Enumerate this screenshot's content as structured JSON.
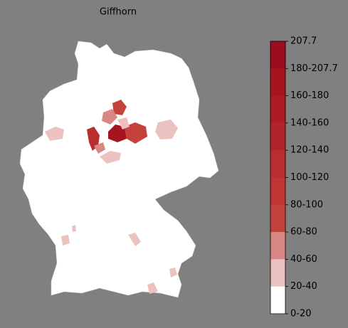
{
  "title": "Giffhorn",
  "legend": {
    "labels": [
      "207.7",
      "180-207.7",
      "160-180",
      "140-160",
      "120-140",
      "100-120",
      "80-100",
      "60-80",
      "40-60",
      "20-40",
      "0-20"
    ],
    "colors": [
      "#9c0b1e",
      "#a61420",
      "#ad1c25",
      "#b3242a",
      "#b92d2f",
      "#be3533",
      "#c5413b",
      "#d98785",
      "#ecc2c0",
      "#ffffff"
    ]
  }
}
